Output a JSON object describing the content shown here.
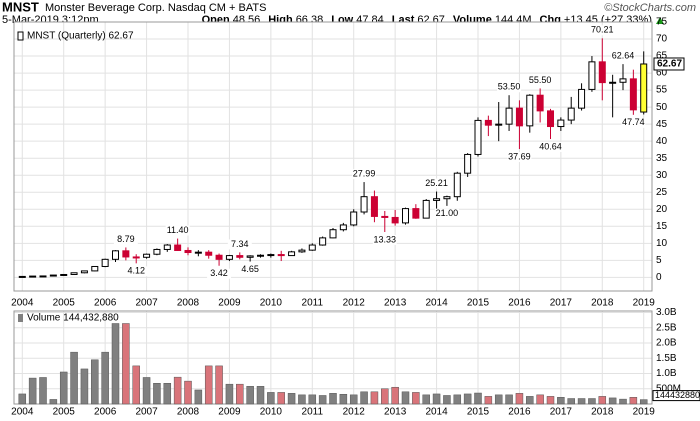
{
  "header": {
    "symbol": "MNST",
    "name": "Monster Beverage Corp. Nasdaq CM + BATS",
    "date": "5-Mar-2019 3:12pm",
    "quote": [
      {
        "label": "Open",
        "value": "48.56"
      },
      {
        "label": "High",
        "value": "66.38"
      },
      {
        "label": "Low",
        "value": "47.84"
      },
      {
        "label": "Last",
        "value": "62.67"
      },
      {
        "label": "Volume",
        "value": "144.4M"
      },
      {
        "label": "Chg",
        "value": "+13.45 (+27.33%)"
      }
    ],
    "credit": "©StockCharts.com"
  },
  "chart_data": {
    "type": "candlestick",
    "legend": "MNST (Quarterly) 62.67",
    "x": [
      2004,
      2004.25,
      2004.5,
      2004.75,
      2005,
      2005.25,
      2005.5,
      2005.75,
      2006,
      2006.25,
      2006.5,
      2006.75,
      2007,
      2007.25,
      2007.5,
      2007.75,
      2008,
      2008.25,
      2008.5,
      2008.75,
      2009,
      2009.25,
      2009.5,
      2009.75,
      2010,
      2010.25,
      2010.5,
      2010.75,
      2011,
      2011.25,
      2011.5,
      2011.75,
      2012,
      2012.25,
      2012.5,
      2012.75,
      2013,
      2013.25,
      2013.5,
      2013.75,
      2014,
      2014.25,
      2014.5,
      2014.75,
      2015,
      2015.25,
      2015.5,
      2015.75,
      2016,
      2016.25,
      2016.5,
      2016.75,
      2017,
      2017.25,
      2017.5,
      2017.75,
      2018,
      2018.25,
      2018.5,
      2018.75,
      2019
    ],
    "open": [
      0.2,
      0.28,
      0.38,
      0.42,
      0.68,
      0.85,
      1.35,
      1.9,
      3.2,
      5.3,
      7.8,
      6.0,
      5.9,
      6.8,
      8.2,
      9.5,
      7.9,
      7.3,
      7.4,
      6.5,
      5.3,
      6.4,
      5.9,
      6.3,
      6.5,
      6.7,
      6.4,
      7.5,
      8.0,
      9.5,
      11.6,
      14.0,
      15.4,
      19.2,
      23.7,
      17.9,
      17.6,
      16.0,
      20.2,
      17.4,
      22.6,
      23.1,
      23.7,
      30.6,
      36.1,
      46.1,
      44.7,
      45.0,
      49.7,
      44.5,
      53.5,
      48.9,
      44.3,
      46.2,
      49.7,
      55.2,
      63.3,
      57.2,
      57.3,
      58.3,
      48.56
    ],
    "high": [
      0.3,
      0.4,
      0.45,
      0.7,
      0.9,
      1.4,
      2.0,
      3.3,
      5.5,
      8.0,
      8.79,
      6.8,
      7.0,
      8.5,
      9.8,
      11.4,
      8.8,
      8.0,
      8.0,
      7.0,
      6.6,
      7.34,
      6.5,
      6.8,
      7.0,
      7.8,
      7.8,
      8.5,
      10.0,
      12.0,
      14.5,
      16.0,
      20.0,
      27.99,
      25.5,
      19.5,
      19.8,
      20.5,
      21.5,
      23.0,
      25.21,
      24.0,
      31.0,
      36.5,
      47.0,
      47.5,
      51.5,
      53.5,
      52.0,
      53.8,
      55.5,
      49.5,
      47.0,
      53.0,
      57.0,
      65.0,
      70.21,
      59.5,
      62.64,
      61.0,
      66.38
    ],
    "low": [
      0.18,
      0.25,
      0.33,
      0.4,
      0.6,
      0.8,
      1.2,
      1.8,
      3.0,
      4.5,
      5.0,
      4.12,
      5.5,
      6.5,
      7.5,
      7.8,
      6.5,
      6.2,
      5.5,
      3.42,
      4.8,
      5.3,
      4.65,
      5.8,
      5.8,
      4.8,
      6.3,
      7.2,
      7.8,
      9.3,
      11.5,
      13.5,
      15.0,
      18.5,
      16.2,
      13.33,
      15.2,
      15.5,
      17.2,
      17.3,
      20.2,
      21.0,
      22.5,
      29.5,
      35.5,
      41.5,
      40.0,
      43.0,
      37.69,
      42.5,
      45.5,
      40.64,
      43.0,
      45.0,
      49.0,
      54.5,
      52.0,
      47.0,
      55.0,
      47.74,
      47.84
    ],
    "close": [
      0.28,
      0.38,
      0.42,
      0.68,
      0.85,
      1.35,
      1.9,
      3.2,
      5.3,
      7.8,
      6.0,
      5.9,
      6.8,
      8.2,
      9.5,
      7.9,
      7.3,
      7.4,
      6.5,
      5.3,
      6.4,
      5.9,
      6.3,
      6.5,
      6.7,
      6.4,
      7.5,
      8.0,
      9.5,
      11.6,
      14.0,
      15.4,
      19.2,
      23.7,
      17.9,
      17.6,
      16.0,
      20.2,
      17.4,
      22.6,
      23.1,
      23.7,
      30.6,
      36.1,
      46.1,
      44.7,
      45.0,
      49.7,
      44.5,
      53.5,
      48.9,
      44.3,
      46.2,
      49.7,
      55.2,
      63.3,
      57.2,
      57.3,
      58.3,
      49.2,
      62.67
    ],
    "high_labels": [
      null,
      null,
      null,
      null,
      null,
      null,
      null,
      null,
      null,
      null,
      "8.79",
      null,
      null,
      null,
      null,
      "11.40",
      null,
      null,
      null,
      null,
      null,
      "7.34",
      null,
      null,
      null,
      null,
      null,
      null,
      null,
      null,
      null,
      null,
      null,
      "27.99",
      null,
      null,
      null,
      null,
      null,
      null,
      "25.21",
      null,
      null,
      null,
      null,
      null,
      null,
      "53.50",
      null,
      null,
      "55.50",
      null,
      null,
      null,
      null,
      null,
      "70.21",
      null,
      "62.64",
      null,
      null
    ],
    "low_labels": [
      null,
      null,
      null,
      null,
      null,
      null,
      null,
      null,
      null,
      null,
      null,
      "4.12",
      null,
      null,
      null,
      null,
      null,
      null,
      null,
      "3.42",
      null,
      null,
      "4.65",
      null,
      null,
      null,
      null,
      null,
      null,
      null,
      null,
      null,
      null,
      null,
      null,
      "13.33",
      null,
      null,
      null,
      null,
      null,
      "21.00",
      null,
      null,
      null,
      null,
      null,
      null,
      "37.69",
      null,
      null,
      "40.64",
      null,
      null,
      null,
      null,
      null,
      null,
      null,
      "47.74",
      null
    ],
    "xlim": [
      2003.8,
      2019.2
    ],
    "xticks": [
      2004,
      2005,
      2006,
      2007,
      2008,
      2009,
      2010,
      2011,
      2012,
      2013,
      2014,
      2015,
      2016,
      2017,
      2018,
      2019
    ],
    "ylim": [
      -4,
      75
    ],
    "yticks": [
      0,
      5,
      10,
      15,
      20,
      25,
      30,
      35,
      40,
      45,
      50,
      55,
      60,
      65,
      70,
      75
    ],
    "grid": true,
    "colors": {
      "up": "#000000",
      "down": "#cc0033",
      "highlight": "#ffff33"
    },
    "volume": [
      330000000,
      850000000,
      870000000,
      150000000,
      1050000000,
      1700000000,
      1150000000,
      1450000000,
      1700000000,
      2640000000,
      2640000000,
      1250000000,
      870000000,
      680000000,
      680000000,
      880000000,
      750000000,
      460000000,
      1250000000,
      1250000000,
      650000000,
      650000000,
      580000000,
      580000000,
      380000000,
      380000000,
      350000000,
      300000000,
      300000000,
      280000000,
      350000000,
      320000000,
      300000000,
      400000000,
      400000000,
      500000000,
      550000000,
      400000000,
      380000000,
      300000000,
      330000000,
      280000000,
      300000000,
      330000000,
      360000000,
      250000000,
      300000000,
      300000000,
      350000000,
      250000000,
      300000000,
      250000000,
      220000000,
      180000000,
      180000000,
      180000000,
      250000000,
      200000000,
      160000000,
      220000000,
      144432880
    ],
    "volume_panel": {
      "legend": "Volume 144,432,880",
      "last_label": "144432880",
      "ylim": [
        0,
        3050000000
      ],
      "yticks": [
        {
          "value": 500000000,
          "label": "500M"
        },
        {
          "value": 1000000000,
          "label": "1.0B"
        },
        {
          "value": 1500000000,
          "label": "1.5B"
        },
        {
          "value": 2000000000,
          "label": "2.0B"
        },
        {
          "value": 2500000000,
          "label": "2.5B"
        },
        {
          "value": 3000000000,
          "label": "3.0B"
        }
      ],
      "colors": {
        "up": "#808080",
        "down": "#d9747a"
      }
    }
  }
}
